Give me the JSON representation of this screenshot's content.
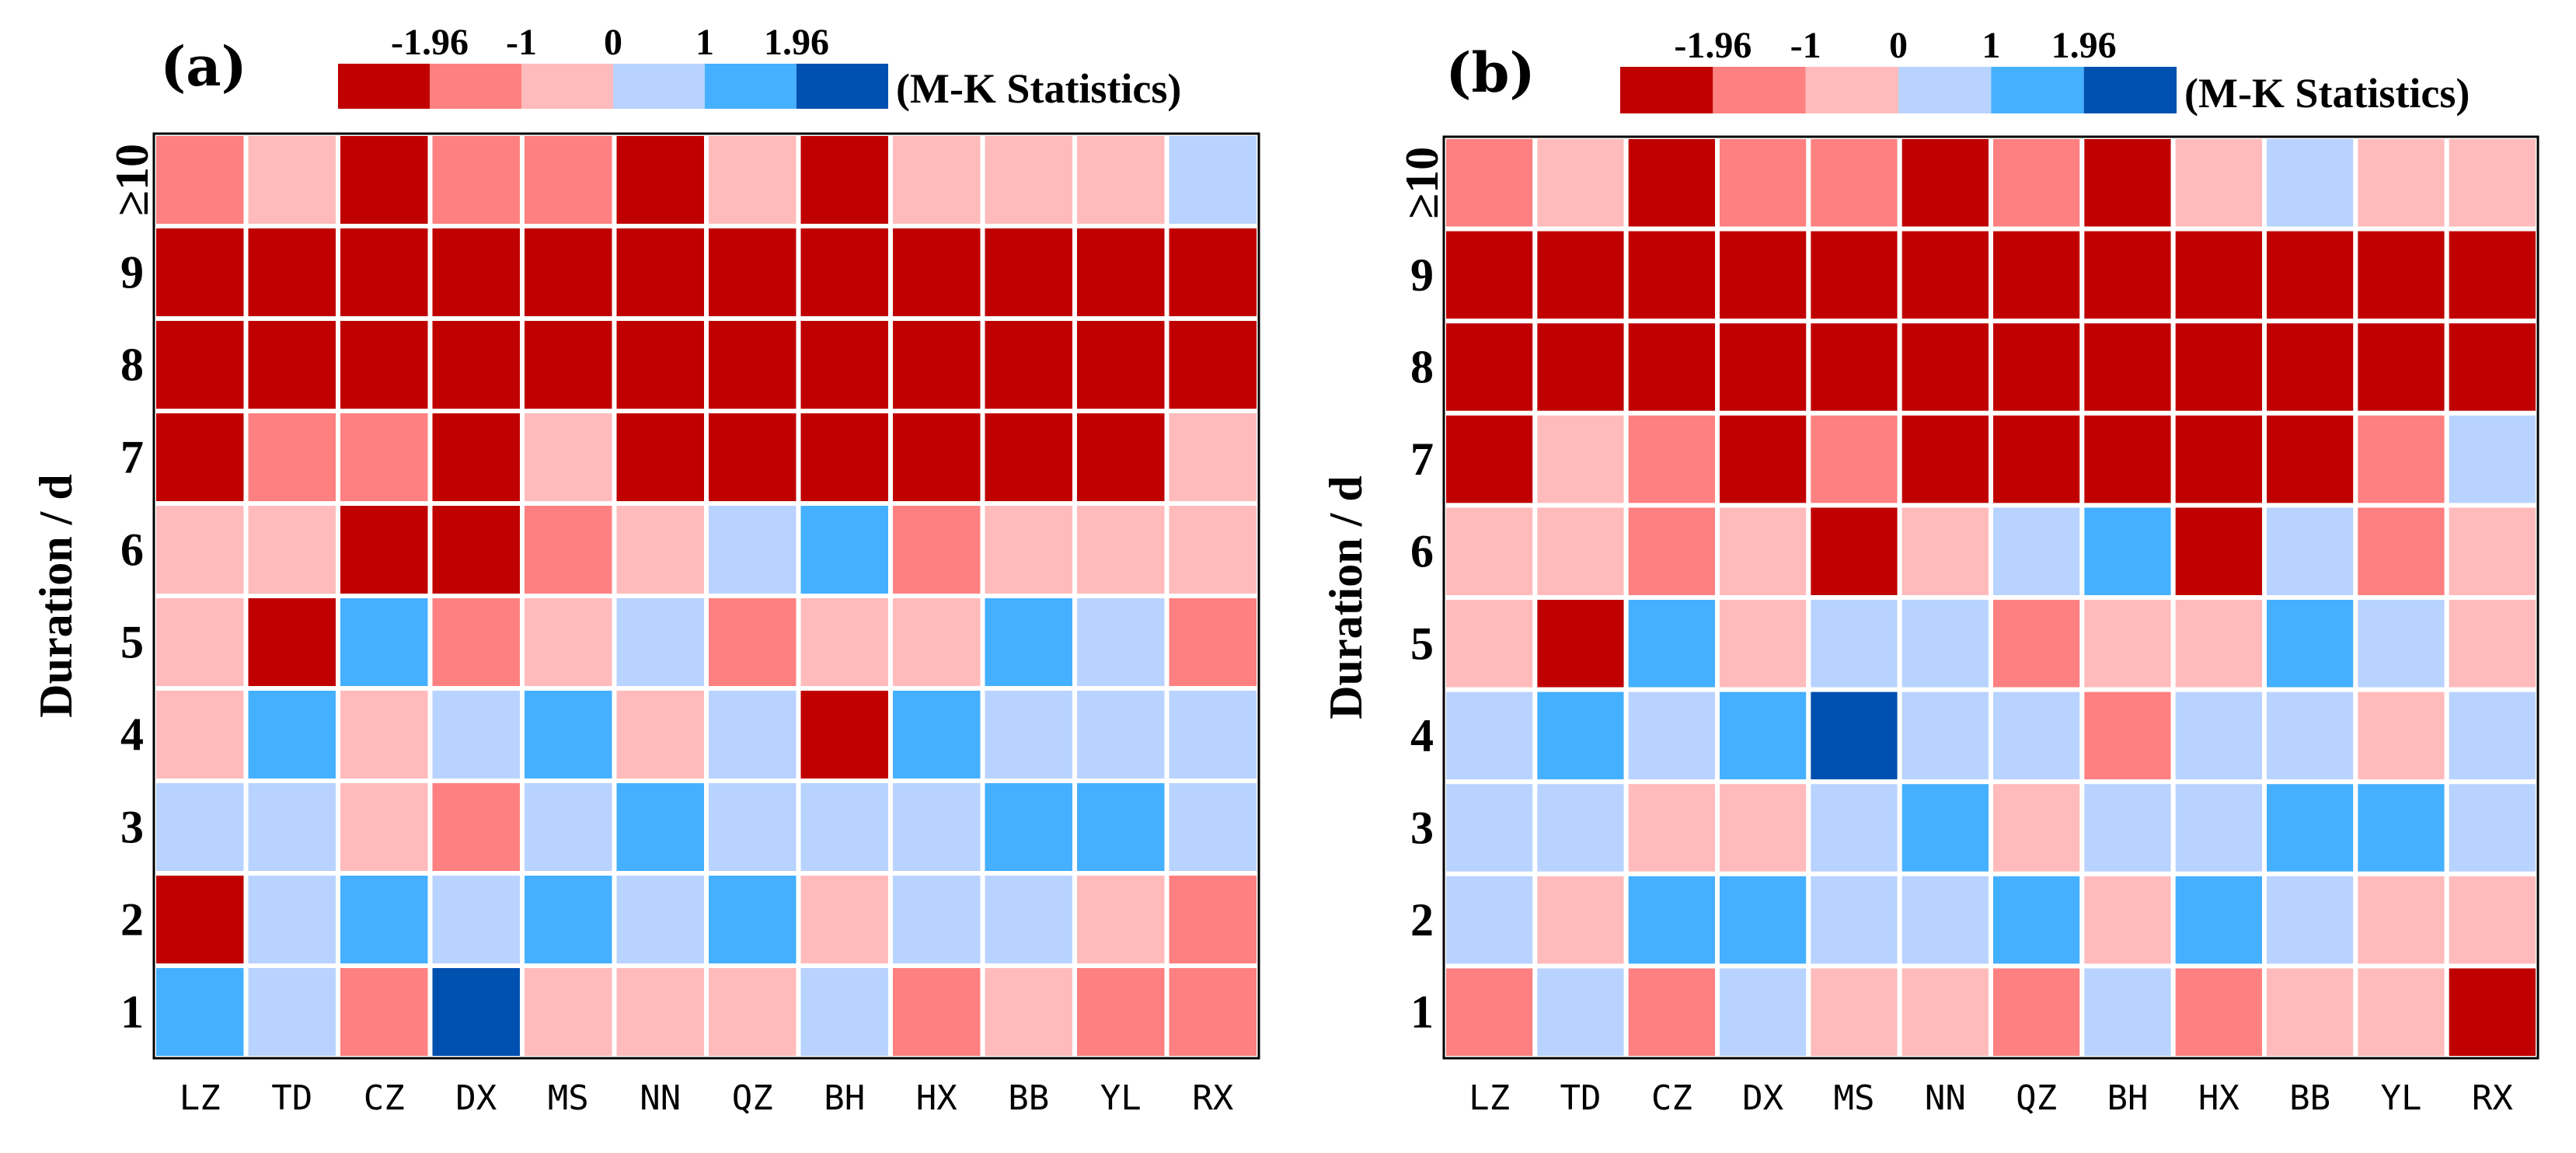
{
  "colors": {
    "dark_red": "#c00000",
    "red": "#ff8080",
    "pink": "#ffbbbb",
    "light_blue": "#b8d3ff",
    "blue": "#45b0ff",
    "dark_blue": "#0050b0"
  },
  "chart_data": [
    {
      "type": "heatmap",
      "panel_label": "(a)",
      "colorbar_ticks": [
        "-1.96",
        "-1",
        "0",
        "1",
        "1.96"
      ],
      "colorbar_title": "(M-K Statistics)",
      "colorbar_classes": [
        "dark_red",
        "red",
        "pink",
        "light_blue",
        "blue",
        "dark_blue"
      ],
      "ylabel": "Duration / d",
      "xlabel": "",
      "x_categories": [
        "LZ",
        "TD",
        "CZ",
        "DX",
        "MS",
        "NN",
        "QZ",
        "BH",
        "HX",
        "BB",
        "YL",
        "RX"
      ],
      "y_categories": [
        "≥10",
        "9",
        "8",
        "7",
        "6",
        "5",
        "4",
        "3",
        "2",
        "1"
      ],
      "value_classes": {
        "0": "Z < -1.96",
        "1": "-1.96 ≤ Z < -1",
        "2": "-1 ≤ Z < 0",
        "3": "0 ≤ Z < 1",
        "4": "1 ≤ Z < 1.96",
        "5": "Z ≥ 1.96"
      },
      "values": [
        [
          1,
          2,
          0,
          1,
          1,
          0,
          2,
          0,
          2,
          2,
          2,
          3
        ],
        [
          0,
          0,
          0,
          0,
          0,
          0,
          0,
          0,
          0,
          0,
          0,
          0
        ],
        [
          0,
          0,
          0,
          0,
          0,
          0,
          0,
          0,
          0,
          0,
          0,
          0
        ],
        [
          0,
          1,
          1,
          0,
          2,
          0,
          0,
          0,
          0,
          0,
          0,
          2
        ],
        [
          2,
          2,
          0,
          0,
          1,
          2,
          3,
          4,
          1,
          2,
          2,
          2
        ],
        [
          2,
          0,
          4,
          1,
          2,
          3,
          1,
          2,
          2,
          4,
          3,
          1
        ],
        [
          2,
          4,
          2,
          3,
          4,
          2,
          3,
          0,
          4,
          3,
          3,
          3
        ],
        [
          3,
          3,
          2,
          1,
          3,
          4,
          3,
          3,
          3,
          4,
          4,
          3
        ],
        [
          0,
          3,
          4,
          3,
          4,
          3,
          4,
          2,
          3,
          3,
          2,
          1
        ],
        [
          4,
          3,
          1,
          5,
          2,
          2,
          2,
          3,
          1,
          2,
          1,
          1
        ]
      ]
    },
    {
      "type": "heatmap",
      "panel_label": "(b)",
      "colorbar_ticks": [
        "-1.96",
        "-1",
        "0",
        "1",
        "1.96"
      ],
      "colorbar_title": "(M-K Statistics)",
      "colorbar_classes": [
        "dark_red",
        "red",
        "pink",
        "light_blue",
        "blue",
        "dark_blue"
      ],
      "ylabel": "Duration / d",
      "xlabel": "",
      "x_categories": [
        "LZ",
        "TD",
        "CZ",
        "DX",
        "MS",
        "NN",
        "QZ",
        "BH",
        "HX",
        "BB",
        "YL",
        "RX"
      ],
      "y_categories": [
        "≥10",
        "9",
        "8",
        "7",
        "6",
        "5",
        "4",
        "3",
        "2",
        "1"
      ],
      "value_classes": {
        "0": "Z < -1.96",
        "1": "-1.96 ≤ Z < -1",
        "2": "-1 ≤ Z < 0",
        "3": "0 ≤ Z < 1",
        "4": "1 ≤ Z < 1.96",
        "5": "Z ≥ 1.96"
      },
      "values": [
        [
          1,
          2,
          0,
          1,
          1,
          0,
          1,
          0,
          2,
          3,
          2,
          2
        ],
        [
          0,
          0,
          0,
          0,
          0,
          0,
          0,
          0,
          0,
          0,
          0,
          0
        ],
        [
          0,
          0,
          0,
          0,
          0,
          0,
          0,
          0,
          0,
          0,
          0,
          0
        ],
        [
          0,
          2,
          1,
          0,
          1,
          0,
          0,
          0,
          0,
          0,
          1,
          3
        ],
        [
          2,
          2,
          1,
          2,
          0,
          2,
          3,
          4,
          0,
          3,
          1,
          2
        ],
        [
          2,
          0,
          4,
          2,
          3,
          3,
          1,
          2,
          2,
          4,
          3,
          2
        ],
        [
          3,
          4,
          3,
          4,
          5,
          3,
          3,
          1,
          3,
          3,
          2,
          3
        ],
        [
          3,
          3,
          2,
          2,
          3,
          4,
          2,
          3,
          3,
          4,
          4,
          3
        ],
        [
          3,
          2,
          4,
          4,
          3,
          3,
          4,
          2,
          4,
          3,
          2,
          2
        ],
        [
          1,
          3,
          1,
          3,
          2,
          2,
          1,
          3,
          1,
          2,
          2,
          0
        ]
      ]
    }
  ]
}
